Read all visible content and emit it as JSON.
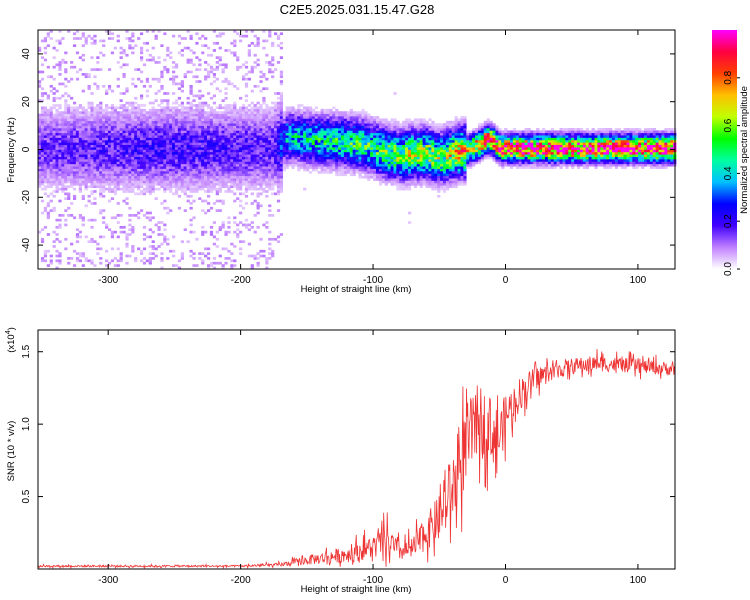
{
  "title": "C2E5.2025.031.15.47.G28",
  "chart_data": [
    {
      "type": "heatmap",
      "xlabel": "Height of straight line (km)",
      "ylabel": "Frequency (Hz)",
      "xlim": [
        -353,
        128
      ],
      "ylim": [
        -50,
        50
      ],
      "xticks": [
        -300,
        -200,
        -100,
        0,
        100
      ],
      "yticks": [
        -40,
        -20,
        0,
        20,
        40
      ],
      "colorbar": {
        "label": "Normalized spectral amplitude",
        "range": [
          0,
          1
        ],
        "ticks": [
          "0.0",
          "0.2",
          "0.4",
          "0.6",
          "0.8"
        ],
        "colors": [
          "#ffffff",
          "#c080ff",
          "#4000ff",
          "#0000ff",
          "#00c0ff",
          "#00ffa0",
          "#00ff00",
          "#c0ff00",
          "#ffc000",
          "#ff4000",
          "#ff0040",
          "#ff00ff"
        ]
      },
      "ridge": {
        "x": [
          -353,
          -300,
          -250,
          -200,
          -175,
          -165,
          -150,
          -130,
          -110,
          -100,
          -90,
          -80,
          -70,
          -60,
          -50,
          -40,
          -30,
          -20,
          -15,
          -10,
          -5,
          0,
          20,
          50,
          100,
          128
        ],
        "y": [
          0,
          0,
          0,
          0,
          0,
          5,
          4,
          3,
          2,
          0,
          -2,
          -3,
          -2,
          -2,
          -4,
          -2,
          -1,
          2,
          4,
          3,
          0,
          0,
          0,
          0,
          0,
          0
        ],
        "peak_amplitude": [
          0.15,
          0.17,
          0.19,
          0.17,
          0.17,
          0.38,
          0.42,
          0.45,
          0.47,
          0.48,
          0.52,
          0.55,
          0.58,
          0.58,
          0.55,
          0.62,
          0.72,
          0.82,
          0.86,
          0.86,
          0.88,
          0.9,
          0.92,
          0.93,
          0.94,
          0.94
        ]
      }
    },
    {
      "type": "line",
      "xlabel": "Height of straight line (km)",
      "ylabel": "SNR (10 * v/v)",
      "y_multiplier": "(x10",
      "y_multiplier_exp": "4",
      "y_multiplier_close": ")",
      "xlim": [
        -353,
        128
      ],
      "ylim": [
        0,
        1.65
      ],
      "xticks": [
        -300,
        -200,
        -100,
        0,
        100
      ],
      "yticks": [
        0.5,
        1.0,
        1.5
      ],
      "ytick_labels": [
        "0.5",
        "1.0",
        "1.5"
      ],
      "series": [
        {
          "color": "#ee3333",
          "x": [
            -353,
            -300,
            -250,
            -200,
            -170,
            -150,
            -120,
            -100,
            -90,
            -80,
            -70,
            -60,
            -50,
            -40,
            -30,
            -20,
            -15,
            -10,
            -5,
            0,
            10,
            20,
            30,
            50,
            70,
            100,
            128
          ],
          "y": [
            0.02,
            0.02,
            0.02,
            0.02,
            0.03,
            0.06,
            0.1,
            0.15,
            0.2,
            0.12,
            0.14,
            0.25,
            0.35,
            0.55,
            0.85,
            1.05,
            1.0,
            0.95,
            0.9,
            1.05,
            1.2,
            1.3,
            1.35,
            1.4,
            1.42,
            1.4,
            1.38
          ],
          "noise": [
            0.008,
            0.008,
            0.008,
            0.008,
            0.015,
            0.04,
            0.07,
            0.1,
            0.13,
            0.08,
            0.1,
            0.15,
            0.2,
            0.3,
            0.35,
            0.3,
            0.28,
            0.28,
            0.25,
            0.2,
            0.15,
            0.1,
            0.08,
            0.07,
            0.07,
            0.06,
            0.06
          ]
        }
      ]
    }
  ]
}
